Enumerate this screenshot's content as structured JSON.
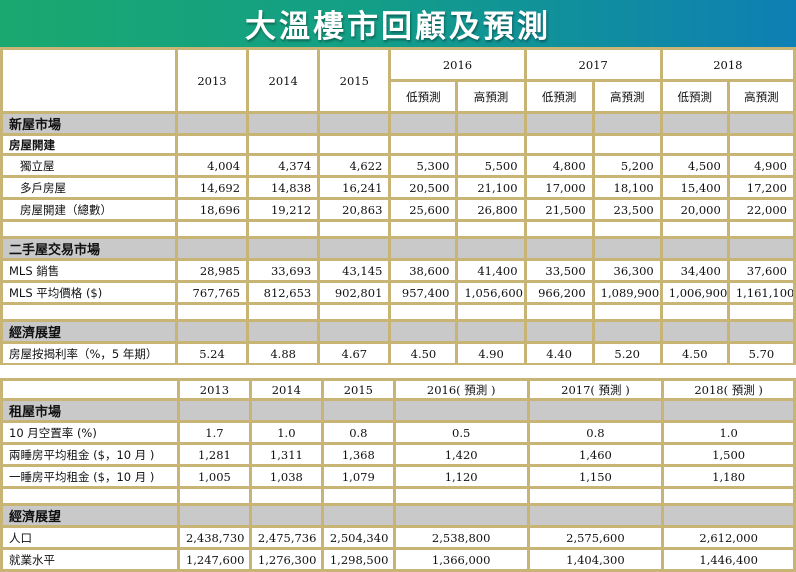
{
  "title": "大溫樓市回顧及預測",
  "table1": {
    "years": [
      "2013",
      "2014",
      "2015",
      "2016",
      "2017",
      "2018"
    ],
    "sub_headers": [
      "低預測",
      "高預測"
    ],
    "sections": [
      {
        "name": "新屋市場",
        "group": "房屋開建",
        "rows": [
          {
            "label": "獨立屋",
            "values": [
              "4,004",
              "4,374",
              "4,622",
              "5,300",
              "5,500",
              "4,800",
              "5,200",
              "4,500",
              "4,900"
            ]
          },
          {
            "label": "多戶房屋",
            "values": [
              "14,692",
              "14,838",
              "16,241",
              "20,500",
              "21,100",
              "17,000",
              "18,100",
              "15,400",
              "17,200"
            ]
          },
          {
            "label": "房屋開建（總數）",
            "values": [
              "18,696",
              "19,212",
              "20,863",
              "25,600",
              "26,800",
              "21,500",
              "23,500",
              "20,000",
              "22,000"
            ]
          }
        ]
      },
      {
        "name": "二手屋交易市場",
        "rows": [
          {
            "label": "MLS 銷售",
            "values": [
              "28,985",
              "33,693",
              "43,145",
              "38,600",
              "41,400",
              "33,500",
              "36,300",
              "34,400",
              "37,600"
            ]
          },
          {
            "label": "MLS 平均價格 ($)",
            "values": [
              "767,765",
              "812,653",
              "902,801",
              "957,400",
              "1,056,600",
              "966,200",
              "1,089,900",
              "1,006,900",
              "1,161,100"
            ]
          }
        ]
      },
      {
        "name": "經濟展望",
        "rows": [
          {
            "label": "房屋按揭利率（%，5 年期）",
            "values": [
              "5.24",
              "4.88",
              "4.67",
              "4.50",
              "4.90",
              "4.40",
              "5.20",
              "4.50",
              "5.70"
            ]
          }
        ]
      }
    ]
  },
  "table2": {
    "years": [
      "2013",
      "2014",
      "2015",
      "2016( 預測 )",
      "2017( 預測 )",
      "2018( 預測 )"
    ],
    "sections": [
      {
        "name": "租屋市場",
        "rows": [
          {
            "label": "10 月空置率 (%)",
            "values": [
              "1.7",
              "1.0",
              "0.8",
              "0.5",
              "0.8",
              "1.0"
            ]
          },
          {
            "label": "兩睡房平均租金 ($，10 月 )",
            "values": [
              "1,281",
              "1,311",
              "1,368",
              "1,420",
              "1,460",
              "1,500"
            ]
          },
          {
            "label": "一睡房平均租金 ($，10 月 )",
            "values": [
              "1,005",
              "1,038",
              "1,079",
              "1,120",
              "1,150",
              "1,180"
            ]
          }
        ]
      },
      {
        "name": "經濟展望",
        "rows": [
          {
            "label": "人口",
            "values": [
              "2,438,730",
              "2,475,736",
              "2,504,340",
              "2,538,800",
              "2,575,600",
              "2,612,000"
            ]
          },
          {
            "label": "就業水平",
            "values": [
              "1,247,600",
              "1,276,300",
              "1,298,500",
              "1,366,000",
              "1,404,300",
              "1,446,400"
            ]
          }
        ]
      }
    ]
  }
}
